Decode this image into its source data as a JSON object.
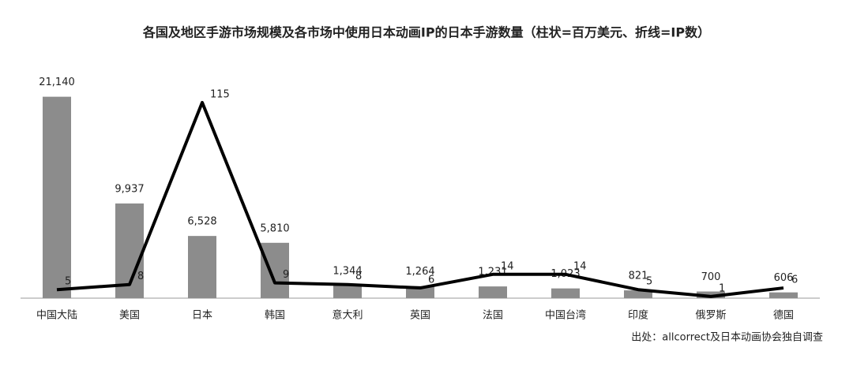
{
  "chart_data": {
    "type": "bar",
    "title": "各国及地区手游市场规模及各市场中使用日本动画IP的日本手游数量（柱状=百万美元、折线=IP数）",
    "source": "出处：allcorrect及日本动画协会独自调查",
    "categories": [
      "中国大陆",
      "美国",
      "日本",
      "韩国",
      "意大利",
      "英国",
      "法国",
      "中国台湾",
      "印度",
      "俄罗斯",
      "德国"
    ],
    "series": [
      {
        "type": "bar",
        "color": "#8c8c8c",
        "values": [
          21140,
          9937,
          6528,
          5810,
          1344,
          1264,
          1231,
          1023,
          821,
          700,
          606
        ],
        "value_labels": [
          "21,140",
          "9,937",
          "6,528",
          "5,810",
          "1,344",
          "1,264",
          "1,231",
          "1,023",
          "821",
          "700",
          "606"
        ]
      },
      {
        "type": "line",
        "axis": "y2",
        "color": "#000000",
        "values": [
          5,
          8,
          115,
          9,
          8,
          6,
          14,
          14,
          5,
          1,
          6
        ]
      }
    ],
    "ylim": [
      0,
      25000
    ],
    "y2lim": [
      0,
      140
    ]
  }
}
